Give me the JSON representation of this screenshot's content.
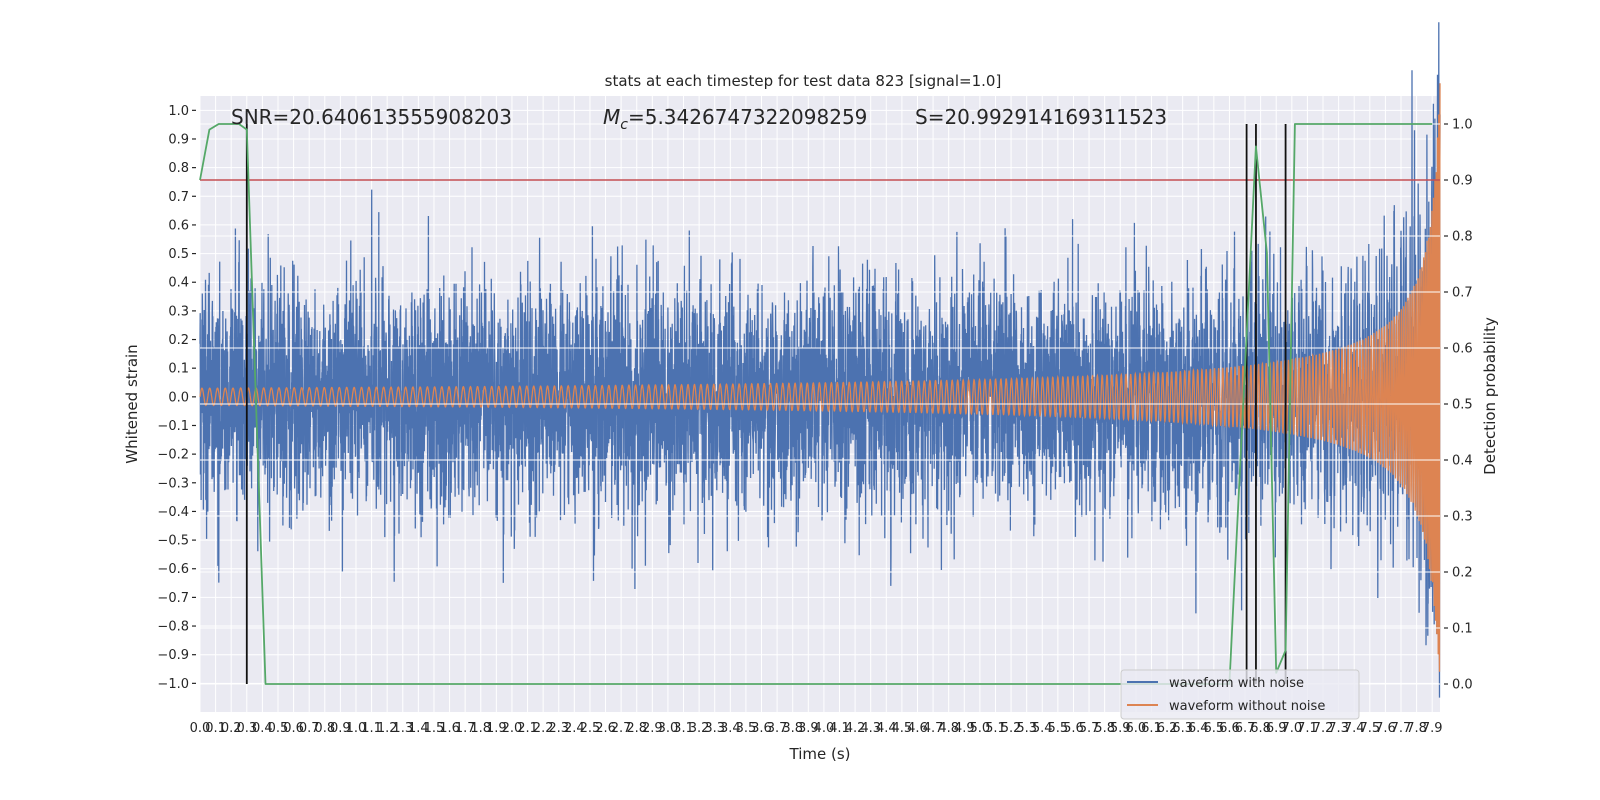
{
  "chart_data": {
    "type": "line",
    "title": "stats at each timestep for test data 823 [signal=1.0]",
    "xlabel": "Time (s)",
    "ylabel": "Whitened strain",
    "ylabel_right": "Detection probability",
    "xlim": [
      0,
      7.95
    ],
    "ylim": [
      -1.1,
      1.05
    ],
    "ylim_right": [
      -0.05,
      1.05
    ],
    "grid": true,
    "background": "#eaeaf2",
    "xticks": [
      "0.0",
      "0.1",
      "0.2",
      "0.3",
      "0.4",
      "0.5",
      "0.6",
      "0.7",
      "0.8",
      "0.9",
      "1.0",
      "1.1",
      "1.2",
      "1.3",
      "1.4",
      "1.5",
      "1.6",
      "1.7",
      "1.8",
      "1.9",
      "2.0",
      "2.1",
      "2.2",
      "2.3",
      "2.4",
      "2.5",
      "2.6",
      "2.7",
      "2.8",
      "2.9",
      "3.0",
      "3.1",
      "3.2",
      "3.3",
      "3.4",
      "3.5",
      "3.6",
      "3.7",
      "3.8",
      "3.9",
      "4.0",
      "4.1",
      "4.2",
      "4.3",
      "4.4",
      "4.5",
      "4.6",
      "4.7",
      "4.8",
      "4.9",
      "5.0",
      "5.1",
      "5.2",
      "5.3",
      "5.4",
      "5.5",
      "5.6",
      "5.7",
      "5.8",
      "5.9",
      "6.0",
      "6.1",
      "6.2",
      "6.3",
      "6.4",
      "6.5",
      "6.6",
      "6.7",
      "6.8",
      "6.9",
      "7.0",
      "7.1",
      "7.2",
      "7.3",
      "7.4",
      "7.5",
      "7.6",
      "7.7",
      "7.8",
      "7.9"
    ],
    "yticks_left": [
      "1.0",
      "0.9",
      "0.8",
      "0.7",
      "0.6",
      "0.5",
      "0.4",
      "0.3",
      "0.2",
      "0.1",
      "0.0",
      "−0.1",
      "−0.2",
      "−0.3",
      "−0.4",
      "−0.5",
      "−0.6",
      "−0.7",
      "−0.8",
      "−0.9",
      "−1.0"
    ],
    "yticks_right": [
      "0.0",
      "0.1",
      "0.2",
      "0.3",
      "0.4",
      "0.5",
      "0.6",
      "0.7",
      "0.8",
      "0.9",
      "1.0"
    ],
    "annotations": {
      "snr": "SNR=20.640613555908203",
      "mc_prefix": "M",
      "mc_sub": "c",
      "mc_value": "=5.3426747322098259",
      "s": "S=20.992914169311523"
    },
    "legend": {
      "placement": "lower-right",
      "entries": [
        "waveform with noise",
        "waveform without noise"
      ]
    },
    "series": [
      {
        "name": "waveform with noise",
        "color": "#4c72b0",
        "axis": "left",
        "description": "whitened noisy strain, dense band about ±0.35 with spikes to about ±0.95"
      },
      {
        "name": "waveform without noise",
        "color": "#dd8452",
        "axis": "left",
        "description": "chirp, amplitude ≈0.03 at 0 s growing to ≈0.5 at 7.9 s"
      },
      {
        "color": "#55a868",
        "axis": "right",
        "points": [
          [
            0,
            0.9
          ],
          [
            0.06,
            0.99
          ],
          [
            0.12,
            1.0
          ],
          [
            0.25,
            1.0
          ],
          [
            0.3,
            0.99
          ],
          [
            0.42,
            0.0
          ],
          [
            6.6,
            0.0
          ],
          [
            6.77,
            0.96
          ],
          [
            6.84,
            0.77
          ],
          [
            6.9,
            0.02
          ],
          [
            6.96,
            0.06
          ],
          [
            7.02,
            1.0
          ],
          [
            7.9,
            1.0
          ]
        ]
      }
    ],
    "threshold": {
      "value": 0.9,
      "color": "#c44e52",
      "axis": "right"
    },
    "detections": {
      "times": [
        0.3,
        6.71,
        6.77,
        6.96
      ],
      "from": 0.0,
      "to": 1.0,
      "color": "#111111",
      "axis": "right"
    }
  }
}
